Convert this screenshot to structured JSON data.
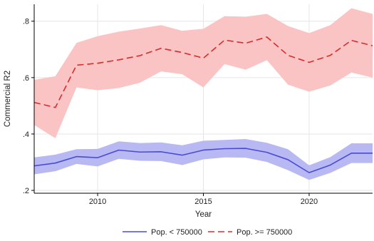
{
  "chart_data": {
    "type": "line",
    "xlabel": "Year",
    "ylabel": "Commercial R2",
    "xlim": [
      2007,
      2023
    ],
    "ylim": [
      0.19,
      0.86
    ],
    "x_ticks": [
      2010,
      2015,
      2020
    ],
    "x_tick_labels": [
      "2010",
      "2015",
      "2020"
    ],
    "y_ticks": [
      0.2,
      0.4,
      0.6,
      0.8
    ],
    "y_tick_labels": [
      ".2",
      ".4",
      ".6",
      ".8"
    ],
    "grid": "horizontal",
    "legend_position": "bottom",
    "x": [
      2007,
      2008,
      2009,
      2010,
      2011,
      2012,
      2013,
      2014,
      2015,
      2016,
      2017,
      2018,
      2019,
      2020,
      2021,
      2022,
      2023
    ],
    "series": [
      {
        "name": "Pop. < 750000",
        "line_style": "solid",
        "color": "#4a4ad9",
        "band_color": "#b8b8f2",
        "values": [
          0.287,
          0.297,
          0.32,
          0.316,
          0.343,
          0.336,
          0.337,
          0.325,
          0.343,
          0.348,
          0.349,
          0.335,
          0.309,
          0.263,
          0.29,
          0.332,
          0.332
        ],
        "lower": [
          0.257,
          0.268,
          0.294,
          0.285,
          0.312,
          0.305,
          0.304,
          0.29,
          0.31,
          0.317,
          0.316,
          0.301,
          0.272,
          0.237,
          0.262,
          0.297,
          0.297
        ],
        "upper": [
          0.317,
          0.327,
          0.346,
          0.347,
          0.374,
          0.368,
          0.37,
          0.36,
          0.376,
          0.379,
          0.382,
          0.369,
          0.346,
          0.289,
          0.318,
          0.367,
          0.367
        ]
      },
      {
        "name": "Pop. >= 750000",
        "line_style": "dashed",
        "color": "#d92b2b",
        "band_color": "#fbc4c4",
        "values": [
          0.512,
          0.494,
          0.644,
          0.651,
          0.663,
          0.678,
          0.704,
          0.689,
          0.669,
          0.733,
          0.722,
          0.744,
          0.679,
          0.654,
          0.679,
          0.732,
          0.713
        ],
        "lower": [
          0.432,
          0.385,
          0.565,
          0.555,
          0.563,
          0.582,
          0.622,
          0.612,
          0.565,
          0.648,
          0.628,
          0.662,
          0.575,
          0.55,
          0.572,
          0.618,
          0.6
        ],
        "upper": [
          0.592,
          0.605,
          0.723,
          0.747,
          0.763,
          0.774,
          0.786,
          0.766,
          0.773,
          0.818,
          0.816,
          0.826,
          0.783,
          0.758,
          0.786,
          0.846,
          0.826
        ]
      }
    ]
  }
}
